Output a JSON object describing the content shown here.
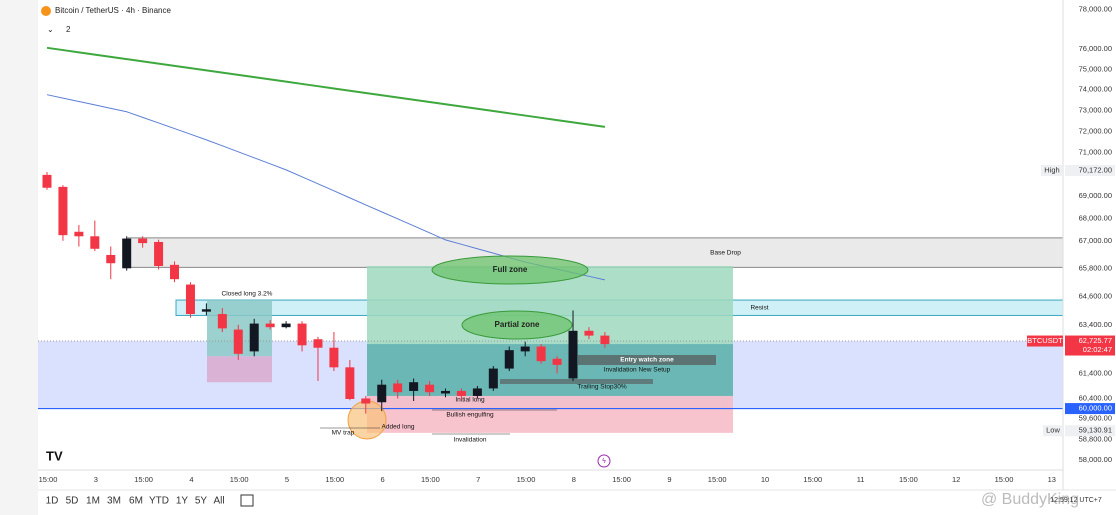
{
  "header": {
    "symbol": "Bitcoin / TetherUS · 4h · Binance",
    "indicator_count": "2"
  },
  "chart_data": {
    "type": "candlestick",
    "x_labels": [
      "15:00",
      "3",
      "15:00",
      "4",
      "15:00",
      "5",
      "15:00",
      "6",
      "15:00",
      "7",
      "15:00",
      "8",
      "15:00",
      "9",
      "15:00",
      "10",
      "15:00",
      "11",
      "15:00",
      "12",
      "15:00",
      "13"
    ],
    "open": [
      69970,
      69420,
      67400,
      67200,
      66380,
      65800,
      67100,
      66950,
      65950,
      65100,
      63950,
      63850,
      63200,
      62300,
      63450,
      63300,
      63450,
      62800,
      62450,
      61650,
      60400,
      60250,
      61000,
      60700,
      60950,
      60600,
      60700,
      60500,
      60800,
      61600,
      62300,
      62500,
      62000,
      61200,
      63150,
      62950
    ],
    "high": [
      70100,
      69500,
      67700,
      67900,
      66750,
      67200,
      67200,
      67050,
      66100,
      65200,
      64300,
      64100,
      63400,
      63650,
      63600,
      63550,
      63550,
      62900,
      63100,
      61950,
      60500,
      61150,
      61150,
      61200,
      61100,
      60800,
      60800,
      60900,
      61700,
      62500,
      62700,
      62600,
      62100,
      64000,
      63300,
      63100
    ],
    "low": [
      69290,
      67000,
      66750,
      66550,
      65330,
      65700,
      66700,
      65750,
      65200,
      63700,
      63800,
      63100,
      61950,
      62100,
      63200,
      63250,
      62300,
      61100,
      61500,
      60330,
      59800,
      59900,
      60400,
      60300,
      60500,
      60450,
      60350,
      60400,
      60700,
      61500,
      62100,
      61800,
      61400,
      61100,
      62800,
      62450
    ],
    "close": [
      69380,
      67250,
      67200,
      66650,
      66020,
      67100,
      66900,
      65900,
      65330,
      63850,
      64050,
      63250,
      62200,
      63450,
      63300,
      63450,
      62550,
      62450,
      61650,
      60380,
      60200,
      60950,
      60650,
      61050,
      60650,
      60700,
      60500,
      60800,
      61600,
      62350,
      62500,
      61900,
      61750,
      63150,
      62950,
      62600
    ],
    "up_color": "#131722",
    "down_color": "#f23645",
    "series": [
      {
        "color": "#3ea83e",
        "values": [
          76070,
          75957,
          75844,
          75732,
          75619,
          75507,
          75395,
          75283,
          75171,
          75060,
          74948,
          74837,
          74726,
          74615,
          74504,
          74394,
          74283,
          74173,
          74063,
          73953,
          73843,
          73734,
          73624,
          73515,
          73406,
          73297,
          73188,
          73079,
          72971,
          72862,
          72754,
          72646,
          72538,
          72431,
          72323,
          72216
        ]
      },
      {
        "color": "#5b7fd6",
        "values": [
          73760,
          73595,
          73430,
          73265,
          73100,
          72935,
          72668,
          72401,
          72134,
          71867,
          71600,
          71320,
          71040,
          70760,
          70480,
          70200,
          69880,
          69560,
          69240,
          68920,
          68600,
          68288,
          67976,
          67664,
          67352,
          67040,
          66846,
          66652,
          66458,
          66264,
          66070,
          65916,
          65762,
          65608,
          65454,
          65300
        ]
      }
    ],
    "log_scale": true,
    "ylim": [
      57700,
      78500
    ],
    "yticks": [
      {
        "value": 58000,
        "label": "58,000.00"
      },
      {
        "value": 58800,
        "label": "58,800.00"
      },
      {
        "value": 59600,
        "label": "59,600.00"
      },
      {
        "value": 60400,
        "label": "60,400.00"
      },
      {
        "value": 61400,
        "label": "61,400.00"
      },
      {
        "value": 63400,
        "label": "63,400.00"
      },
      {
        "value": 64600,
        "label": "64,600.00"
      },
      {
        "value": 65800,
        "label": "65,800.00"
      },
      {
        "value": 67000,
        "label": "67,000.00"
      },
      {
        "value": 68000,
        "label": "68,000.00"
      },
      {
        "value": 69000,
        "label": "69,000.00"
      },
      {
        "value": 71000,
        "label": "71,000.00"
      },
      {
        "value": 72000,
        "label": "72,000.00"
      },
      {
        "value": 73000,
        "label": "73,000.00"
      },
      {
        "value": 74000,
        "label": "74,000.00"
      },
      {
        "value": 75000,
        "label": "75,000.00"
      },
      {
        "value": 76000,
        "label": "76,000.00"
      },
      {
        "value": 78000,
        "label": "78,000.00"
      }
    ],
    "price_tags": {
      "high": {
        "label": "High",
        "value": 70172,
        "value_label": "70,172.00"
      },
      "last": {
        "label": "BTCUSDT",
        "value": 62725.77,
        "value_label": "62,725.77",
        "countdown": "02:02:47"
      },
      "level": {
        "value": 60000,
        "value_label": "60,000.00"
      },
      "low": {
        "label": "Low",
        "value": 59130.91,
        "value_label": "59,130.91"
      }
    },
    "zones": [
      {
        "label": "Base Drop",
        "top": 67130,
        "bottom": 65840,
        "color": "#e6e6e6"
      },
      {
        "label": "Resist",
        "top": 64440,
        "bottom": 63790,
        "color": "#c5edf4"
      },
      {
        "top": 62725.77,
        "bottom": 60000,
        "color": "#d2dcff"
      },
      {
        "top": 65900,
        "bottom": 60500,
        "color": "#9fd8be"
      },
      {
        "top": 62600,
        "bottom": 60500,
        "color": "#5fb0b2"
      },
      {
        "top": 60500,
        "bottom": 59050,
        "color": "#f6b9c4"
      },
      {
        "top": 64440,
        "bottom": 62100,
        "color": "#8cc9c7"
      },
      {
        "top": 62100,
        "bottom": 61050,
        "color": "#d9a9cf"
      }
    ],
    "annotations": [
      "Full zone",
      "Partial zone",
      "Closed long 3.2%",
      "Entry watch zone",
      "Invalidation New Setup",
      "Trailing Stop30%",
      "Initial long",
      "Bullish engulfing",
      "Added long",
      "MV trap",
      "Invalidation"
    ]
  },
  "toolbar": {
    "ranges": [
      "1D",
      "5D",
      "1M",
      "3M",
      "6M",
      "YTD",
      "1Y",
      "5Y",
      "All"
    ],
    "clock": "12:59:12 UTC+7"
  },
  "watermark": "@ BuddyKing"
}
